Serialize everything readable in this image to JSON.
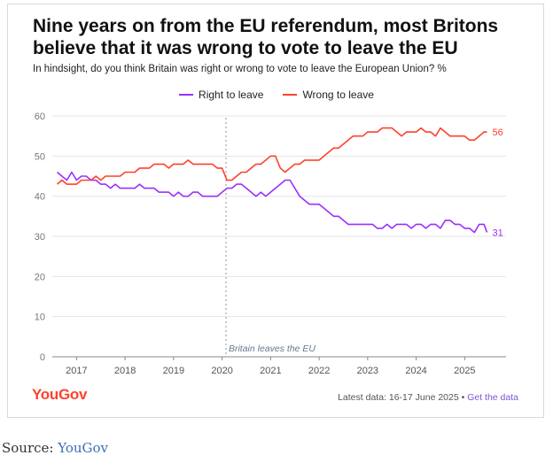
{
  "header": {
    "title": "Nine years on from the EU referendum, most Britons believe that it was wrong to vote to leave the EU",
    "subtitle": "In hindsight, do you think Britain was right or wrong to vote to leave the European Union? %"
  },
  "legend": [
    {
      "name": "Right to leave",
      "color": "#9b30ff"
    },
    {
      "name": "Wrong to leave",
      "color": "#ff412c"
    }
  ],
  "footer": {
    "logo": "YouGov",
    "latest": "Latest data: 16-17 June 2025 • ",
    "link": "Get the data"
  },
  "source": {
    "label": "Source: ",
    "link": "YouGov"
  },
  "chart_data": {
    "type": "line",
    "ylim": [
      0,
      60
    ],
    "yticks": [
      0,
      10,
      20,
      30,
      40,
      50,
      60
    ],
    "xlim": [
      2016.5,
      2025.67
    ],
    "xticks": [
      {
        "value": 2017,
        "label": "2017"
      },
      {
        "value": 2018,
        "label": "2018"
      },
      {
        "value": 2019,
        "label": "2019"
      },
      {
        "value": 2020,
        "label": "2020"
      },
      {
        "value": 2021,
        "label": "2021"
      },
      {
        "value": 2022,
        "label": "2022"
      },
      {
        "value": 2023,
        "label": "2023"
      },
      {
        "value": 2024,
        "label": "2024"
      },
      {
        "value": 2025,
        "label": "2025"
      }
    ],
    "annotation": {
      "x": 2020.08,
      "text": "Britain leaves the EU"
    },
    "grid": true,
    "legend_position": "top",
    "series": [
      {
        "name": "Right to leave",
        "color": "#9b30ff",
        "end_label": "31",
        "x": [
          2016.6,
          2016.7,
          2016.8,
          2016.9,
          2017.0,
          2017.1,
          2017.2,
          2017.3,
          2017.4,
          2017.5,
          2017.6,
          2017.7,
          2017.8,
          2017.9,
          2018.0,
          2018.1,
          2018.2,
          2018.3,
          2018.4,
          2018.5,
          2018.6,
          2018.7,
          2018.8,
          2018.9,
          2019.0,
          2019.1,
          2019.2,
          2019.3,
          2019.4,
          2019.5,
          2019.6,
          2019.7,
          2019.8,
          2019.9,
          2020.0,
          2020.1,
          2020.2,
          2020.3,
          2020.4,
          2020.5,
          2020.6,
          2020.7,
          2020.8,
          2020.9,
          2021.0,
          2021.1,
          2021.2,
          2021.3,
          2021.4,
          2021.5,
          2021.6,
          2021.7,
          2021.8,
          2021.9,
          2022.0,
          2022.1,
          2022.2,
          2022.3,
          2022.4,
          2022.5,
          2022.6,
          2022.7,
          2022.8,
          2022.9,
          2023.0,
          2023.1,
          2023.2,
          2023.3,
          2023.4,
          2023.5,
          2023.6,
          2023.7,
          2023.8,
          2023.9,
          2024.0,
          2024.1,
          2024.2,
          2024.3,
          2024.4,
          2024.5,
          2024.6,
          2024.7,
          2024.8,
          2024.9,
          2025.0,
          2025.1,
          2025.2,
          2025.3,
          2025.4,
          2025.46
        ],
        "values": [
          46,
          45,
          44,
          46,
          44,
          45,
          45,
          44,
          44,
          43,
          43,
          42,
          43,
          42,
          42,
          42,
          42,
          43,
          42,
          42,
          42,
          41,
          41,
          41,
          40,
          41,
          40,
          40,
          41,
          41,
          40,
          40,
          40,
          40,
          41,
          42,
          42,
          43,
          43,
          42,
          41,
          40,
          41,
          40,
          41,
          42,
          43,
          44,
          44,
          42,
          40,
          39,
          38,
          38,
          38,
          37,
          36,
          35,
          35,
          34,
          33,
          33,
          33,
          33,
          33,
          33,
          32,
          32,
          33,
          32,
          33,
          33,
          33,
          32,
          33,
          33,
          32,
          33,
          33,
          32,
          34,
          34,
          33,
          33,
          32,
          32,
          31,
          33,
          33,
          31
        ]
      },
      {
        "name": "Wrong to leave",
        "color": "#ff412c",
        "end_label": "56",
        "x": [
          2016.6,
          2016.7,
          2016.8,
          2016.9,
          2017.0,
          2017.1,
          2017.2,
          2017.3,
          2017.4,
          2017.5,
          2017.6,
          2017.7,
          2017.8,
          2017.9,
          2018.0,
          2018.1,
          2018.2,
          2018.3,
          2018.4,
          2018.5,
          2018.6,
          2018.7,
          2018.8,
          2018.9,
          2019.0,
          2019.1,
          2019.2,
          2019.3,
          2019.4,
          2019.5,
          2019.6,
          2019.7,
          2019.8,
          2019.9,
          2020.0,
          2020.1,
          2020.2,
          2020.3,
          2020.4,
          2020.5,
          2020.6,
          2020.7,
          2020.8,
          2020.9,
          2021.0,
          2021.1,
          2021.2,
          2021.3,
          2021.4,
          2021.5,
          2021.6,
          2021.7,
          2021.8,
          2021.9,
          2022.0,
          2022.1,
          2022.2,
          2022.3,
          2022.4,
          2022.5,
          2022.6,
          2022.7,
          2022.8,
          2022.9,
          2023.0,
          2023.1,
          2023.2,
          2023.3,
          2023.4,
          2023.5,
          2023.6,
          2023.7,
          2023.8,
          2023.9,
          2024.0,
          2024.1,
          2024.2,
          2024.3,
          2024.4,
          2024.5,
          2024.6,
          2024.7,
          2024.8,
          2024.9,
          2025.0,
          2025.1,
          2025.2,
          2025.3,
          2025.4,
          2025.46
        ],
        "values": [
          43,
          44,
          43,
          43,
          43,
          44,
          44,
          44,
          45,
          44,
          45,
          45,
          45,
          45,
          46,
          46,
          46,
          47,
          47,
          47,
          48,
          48,
          48,
          47,
          48,
          48,
          48,
          49,
          48,
          48,
          48,
          48,
          48,
          47,
          47,
          44,
          44,
          45,
          46,
          46,
          47,
          48,
          48,
          49,
          50,
          50,
          47,
          46,
          47,
          48,
          48,
          49,
          49,
          49,
          49,
          50,
          51,
          52,
          52,
          53,
          54,
          55,
          55,
          55,
          56,
          56,
          56,
          57,
          57,
          57,
          56,
          55,
          56,
          56,
          56,
          57,
          56,
          56,
          55,
          57,
          56,
          55,
          55,
          55,
          55,
          54,
          54,
          55,
          56,
          56
        ]
      }
    ]
  }
}
